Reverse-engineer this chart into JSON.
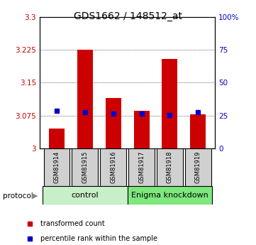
{
  "title": "GDS1662 / 148512_at",
  "samples": [
    "GSM81914",
    "GSM81915",
    "GSM81916",
    "GSM81917",
    "GSM81918",
    "GSM81919"
  ],
  "red_values": [
    3.045,
    3.226,
    3.115,
    3.086,
    3.205,
    3.078
  ],
  "blue_values": [
    3.086,
    3.082,
    3.08,
    3.08,
    3.076,
    3.082
  ],
  "y_min": 3.0,
  "y_max": 3.3,
  "y_ticks": [
    3.0,
    3.075,
    3.15,
    3.225,
    3.3
  ],
  "y_tick_labels": [
    "3",
    "3.075",
    "3.15",
    "3.225",
    "3.3"
  ],
  "y2_ticks": [
    0,
    25,
    50,
    75,
    100
  ],
  "y2_tick_labels": [
    "0",
    "25",
    "50",
    "75",
    "100%"
  ],
  "protocol_labels": [
    "control",
    "Enigma knockdown"
  ],
  "control_color": "#c8f0c8",
  "knockdown_color": "#7de87d",
  "bar_color": "#cc0000",
  "blue_color": "#0000cc",
  "sample_box_color": "#d0d0d0",
  "title_fontsize": 10,
  "tick_fontsize": 7.5,
  "sample_fontsize": 6,
  "proto_fontsize": 8,
  "legend_fontsize": 7
}
